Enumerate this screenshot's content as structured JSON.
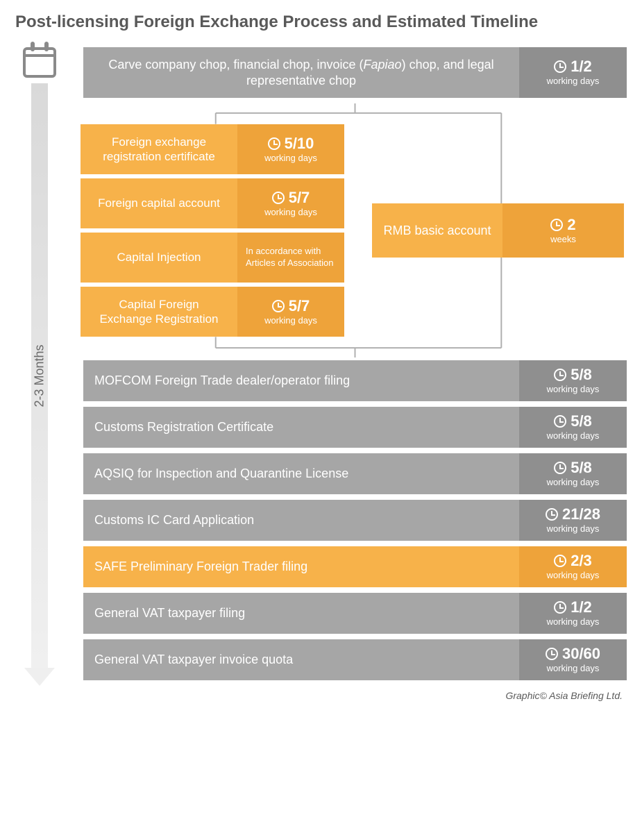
{
  "title": "Post-licensing Foreign Exchange Process and Estimated Timeline",
  "timeline_label": "2-3 Months",
  "colors": {
    "gray_main": "#a6a6a6",
    "gray_side": "#8f8f8f",
    "orange_main": "#f7b24a",
    "orange_side": "#eea33a",
    "connector": "#b0b0b0",
    "text": "#ffffff",
    "title_text": "#595959"
  },
  "top_step": {
    "label_pre": "Carve company chop, financial chop, invoice (",
    "label_ital": "Fapiao",
    "label_post": ") chop, and legal representative chop",
    "duration": "1/2",
    "unit": "working days"
  },
  "branch_left": [
    {
      "label": "Foreign exchange registration certificate",
      "duration": "5/10",
      "unit": "working days"
    },
    {
      "label": "Foreign capital account",
      "duration": "5/7",
      "unit": "working days"
    },
    {
      "label": "Capital Injection",
      "note": "In accordance with Articles of Association"
    },
    {
      "label": "Capital Foreign Exchange Registration",
      "duration": "5/7",
      "unit": "working days"
    }
  ],
  "branch_right": {
    "label": "RMB basic account",
    "duration": "2",
    "unit": "weeks"
  },
  "bottom_steps": [
    {
      "label": "MOFCOM Foreign Trade dealer/operator filing",
      "duration": "5/8",
      "unit": "working days",
      "color": "gray"
    },
    {
      "label": "Customs Registration Certificate",
      "duration": "5/8",
      "unit": "working days",
      "color": "gray"
    },
    {
      "label": "AQSIQ for Inspection and Quarantine License",
      "duration": "5/8",
      "unit": "working days",
      "color": "gray"
    },
    {
      "label": "Customs IC Card Application",
      "duration": "21/28",
      "unit": "working days",
      "color": "gray"
    },
    {
      "label": "SAFE Preliminary Foreign Trader filing",
      "duration": "2/3",
      "unit": "working days",
      "color": "orange"
    },
    {
      "label": "General VAT taxpayer filing",
      "duration": "1/2",
      "unit": "working days",
      "color": "gray"
    },
    {
      "label": "General VAT taxpayer invoice quota",
      "duration": "30/60",
      "unit": "working days",
      "color": "gray"
    }
  ],
  "footer": "Graphic© Asia Briefing Ltd."
}
